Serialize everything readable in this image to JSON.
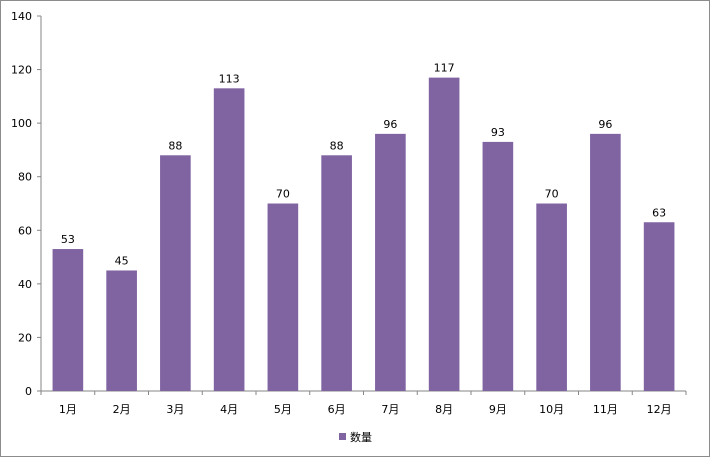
{
  "chart_data": {
    "type": "bar",
    "categories": [
      "1月",
      "2月",
      "3月",
      "4月",
      "5月",
      "6月",
      "7月",
      "8月",
      "9月",
      "10月",
      "11月",
      "12月"
    ],
    "series": [
      {
        "name": "数量",
        "values": [
          53,
          45,
          88,
          113,
          70,
          88,
          96,
          117,
          93,
          70,
          96,
          63
        ],
        "color": "#8064a2"
      }
    ],
    "ylim": [
      0,
      140
    ],
    "y_ticks": [
      0,
      20,
      40,
      60,
      80,
      100,
      120,
      140
    ],
    "data_labels": true,
    "grid": false,
    "legend_position": "bottom"
  }
}
